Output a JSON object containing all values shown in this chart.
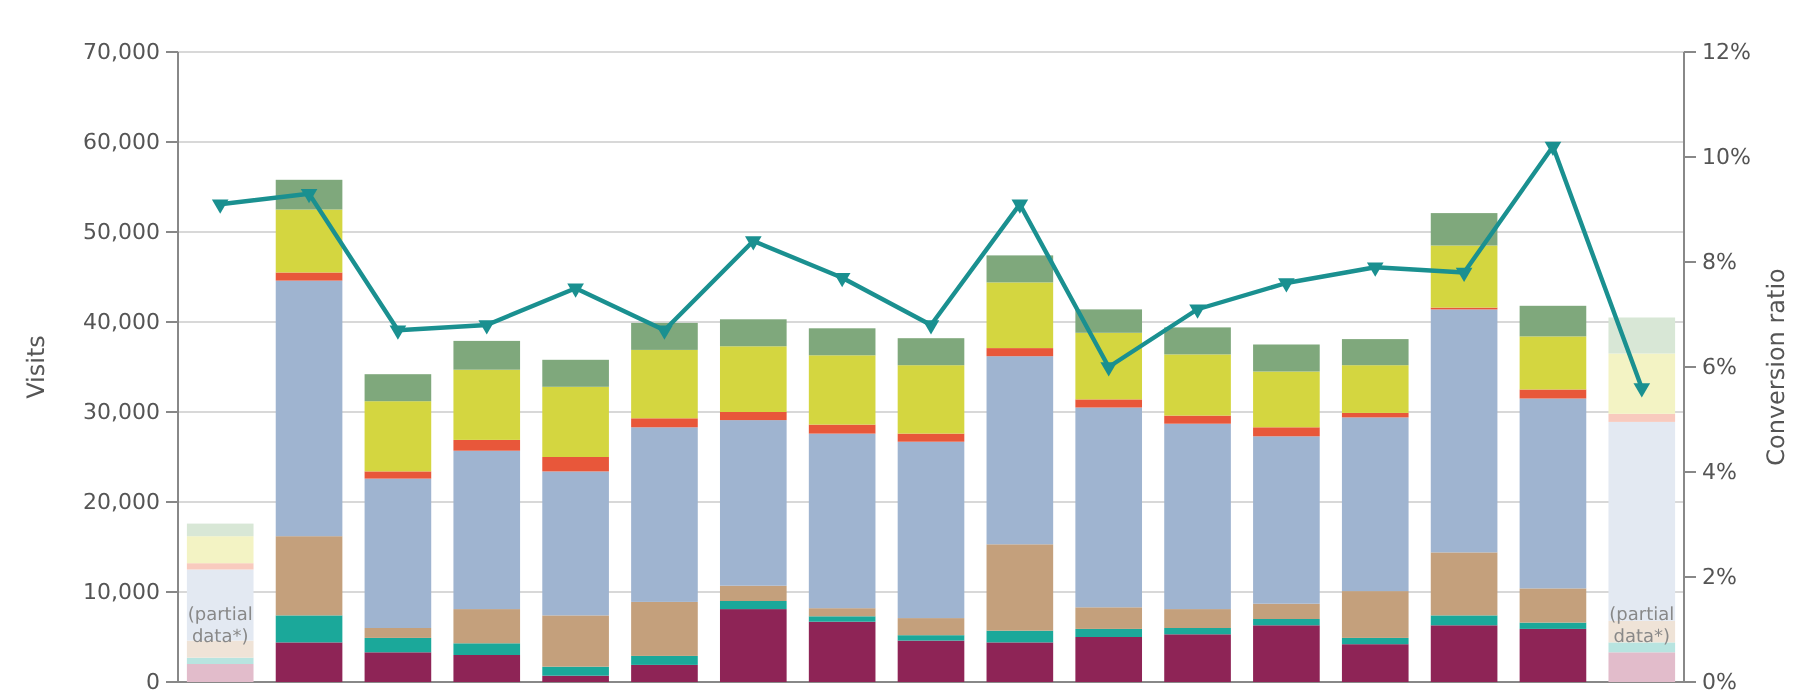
{
  "chart_data": {
    "type": "bar",
    "stacked": true,
    "ylabel": "Visits",
    "y2label": "Conversion ratio",
    "categories": [
      null,
      null,
      null,
      null,
      null,
      null,
      null,
      null,
      null,
      null,
      null,
      null,
      null,
      null,
      null,
      null,
      null
    ],
    "series": [
      {
        "colors": [
          "#e2bccb",
          "#8e2456",
          "#8e2456",
          "#8e2456",
          "#8e2456",
          "#8e2456",
          "#8e2456",
          "#8e2456",
          "#8e2456",
          "#8e2456",
          "#8e2456",
          "#8e2456",
          "#8e2456",
          "#8e2456",
          "#8e2456",
          "#8e2456",
          "#e2bccb"
        ],
        "values": [
          2000,
          4400,
          3300,
          3000,
          700,
          1900,
          8100,
          6700,
          4600,
          4400,
          5000,
          5300,
          6300,
          4200,
          6300,
          5900,
          3300
        ]
      },
      {
        "colors": [
          "#b8e4e0",
          "#1ba89a",
          "#1ba89a",
          "#1ba89a",
          "#1ba89a",
          "#1ba89a",
          "#1ba89a",
          "#1ba89a",
          "#1ba89a",
          "#1ba89a",
          "#1ba89a",
          "#1ba89a",
          "#1ba89a",
          "#1ba89a",
          "#1ba89a",
          "#1ba89a",
          "#b8e4e0"
        ],
        "values": [
          700,
          3000,
          1600,
          1300,
          1000,
          1000,
          900,
          600,
          600,
          1300,
          900,
          700,
          700,
          700,
          1100,
          700,
          1100
        ]
      },
      {
        "colors": [
          "#efe3d7",
          "#c4a07c",
          "#c4a07c",
          "#c4a07c",
          "#c4a07c",
          "#c4a07c",
          "#c4a07c",
          "#c4a07c",
          "#c4a07c",
          "#c4a07c",
          "#c4a07c",
          "#c4a07c",
          "#c4a07c",
          "#c4a07c",
          "#c4a07c",
          "#c4a07c",
          "#efe3d7"
        ],
        "values": [
          1900,
          8800,
          1100,
          3800,
          5700,
          6000,
          1700,
          900,
          1900,
          9600,
          2400,
          2100,
          1700,
          5200,
          7000,
          3800,
          2400
        ]
      },
      {
        "colors": [
          "#e3e9f2",
          "#9fb4d0",
          "#9fb4d0",
          "#9fb4d0",
          "#9fb4d0",
          "#9fb4d0",
          "#9fb4d0",
          "#9fb4d0",
          "#9fb4d0",
          "#9fb4d0",
          "#9fb4d0",
          "#9fb4d0",
          "#9fb4d0",
          "#9fb4d0",
          "#9fb4d0",
          "#9fb4d0",
          "#e3e9f2"
        ],
        "values": [
          7900,
          28400,
          16600,
          17600,
          16000,
          19400,
          18400,
          19400,
          19600,
          20900,
          22200,
          20600,
          18600,
          19300,
          27000,
          21100,
          22100
        ]
      },
      {
        "colors": [
          "#f8cabe",
          "#e8573a",
          "#e8573a",
          "#e8573a",
          "#e8573a",
          "#e8573a",
          "#e8573a",
          "#e8573a",
          "#e8573a",
          "#e8573a",
          "#e8573a",
          "#e8573a",
          "#e8573a",
          "#e8573a",
          "#e8573a",
          "#e8573a",
          "#f8cabe"
        ],
        "values": [
          700,
          900,
          800,
          1200,
          1600,
          1000,
          900,
          1000,
          900,
          900,
          900,
          900,
          1000,
          500,
          200,
          1000,
          900
        ]
      },
      {
        "colors": [
          "#f3f3c4",
          "#d4d640",
          "#d4d640",
          "#d4d640",
          "#d4d640",
          "#d4d640",
          "#d4d640",
          "#d4d640",
          "#d4d640",
          "#d4d640",
          "#d4d640",
          "#d4d640",
          "#d4d640",
          "#d4d640",
          "#d4d640",
          "#d4d640",
          "#f3f3c4"
        ],
        "values": [
          3000,
          7000,
          7800,
          7800,
          7800,
          7600,
          7300,
          7700,
          7600,
          7300,
          7400,
          6800,
          6200,
          5300,
          6900,
          5900,
          6700
        ]
      },
      {
        "colors": [
          "#d8e7d6",
          "#7fa87c",
          "#7fa87c",
          "#7fa87c",
          "#7fa87c",
          "#7fa87c",
          "#7fa87c",
          "#7fa87c",
          "#7fa87c",
          "#7fa87c",
          "#7fa87c",
          "#7fa87c",
          "#7fa87c",
          "#7fa87c",
          "#7fa87c",
          "#7fa87c",
          "#d8e7d6"
        ],
        "values": [
          1400,
          3300,
          3000,
          3200,
          3000,
          3000,
          3000,
          3000,
          3000,
          3000,
          2600,
          3000,
          3000,
          2900,
          3600,
          3400,
          4000
        ]
      },
      {
        "type": "line",
        "axis": "y2",
        "color": "#1a9090",
        "marker": "triangle",
        "values": [
          9.1,
          9.3,
          6.7,
          6.8,
          7.5,
          6.7,
          8.4,
          7.7,
          6.8,
          9.1,
          6.0,
          7.1,
          7.6,
          7.9,
          7.8,
          10.2,
          5.6
        ]
      }
    ],
    "ylim": [
      0,
      70000
    ],
    "yticks": [
      {
        "value": 0,
        "label": "0"
      },
      {
        "value": 10000,
        "label": "10,000"
      },
      {
        "value": 20000,
        "label": "20,000"
      },
      {
        "value": 30000,
        "label": "30,000"
      },
      {
        "value": 40000,
        "label": "40,000"
      },
      {
        "value": 50000,
        "label": "50,000"
      },
      {
        "value": 60000,
        "label": "60,000"
      },
      {
        "value": 70000,
        "label": "70,000"
      }
    ],
    "y2lim": [
      0,
      12
    ],
    "y2ticks": [
      {
        "value": 0,
        "label": "0%"
      },
      {
        "value": 2,
        "label": "2%"
      },
      {
        "value": 4,
        "label": "4%"
      },
      {
        "value": 6,
        "label": "6%"
      },
      {
        "value": 8,
        "label": "8%"
      },
      {
        "value": 10,
        "label": "10%"
      },
      {
        "value": 12,
        "label": "12%"
      }
    ],
    "grid": "y",
    "annotations": [
      "(partial data*)",
      "(partial data*)"
    ]
  }
}
